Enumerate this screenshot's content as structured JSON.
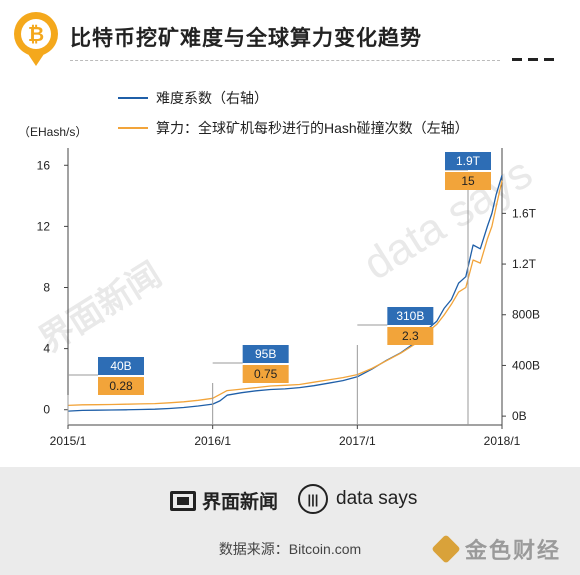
{
  "header": {
    "badge_symbol": "₿",
    "title": "比特币挖矿难度与全球算力变化趋势"
  },
  "legend": [
    {
      "label": "难度系数（右轴）",
      "color": "#1f5fa8"
    },
    {
      "label": "算力：全球矿机每秒进行的Hash碰撞次数（左轴）",
      "color": "#f2a43a"
    }
  ],
  "unit_label": "（EHash/s）",
  "watermarks": {
    "left": "界面新闻",
    "right": "data says"
  },
  "footer": {
    "brand1": "界面新闻",
    "brand2_icon": "|||",
    "brand2": "data says",
    "source": "数据来源：Bitcoin.com",
    "corner": "金色财经"
  },
  "colors": {
    "difficulty": "#1f5fa8",
    "hashrate": "#f2a43a",
    "badge": "#f4a81c"
  },
  "chart_data": {
    "type": "line",
    "x_tick_labels": [
      "2015/1",
      "2016/1",
      "2017/1",
      "2018/1"
    ],
    "x_range": [
      2015.0,
      2018.0
    ],
    "left_axis": {
      "ticks": [
        "0",
        "4",
        "8",
        "12",
        "16"
      ],
      "range": [
        -1,
        17
      ]
    },
    "right_axis": {
      "ticks": [
        "0B",
        "400B",
        "800B",
        "1.2T",
        "1.6T"
      ],
      "range": [
        -0.07,
        2.1
      ]
    },
    "series": [
      {
        "name": "难度系数（右轴）",
        "axis": "right",
        "unit": "T",
        "x": [
          2015.0,
          2015.1,
          2015.2,
          2015.3,
          2015.4,
          2015.5,
          2015.6,
          2015.7,
          2015.8,
          2015.9,
          2016.0,
          2016.05,
          2016.1,
          2016.2,
          2016.3,
          2016.4,
          2016.5,
          2016.6,
          2016.7,
          2016.8,
          2016.9,
          2017.0,
          2017.1,
          2017.2,
          2017.3,
          2017.4,
          2017.5,
          2017.55,
          2017.6,
          2017.65,
          2017.7,
          2017.75,
          2017.8,
          2017.85,
          2017.9,
          2017.93,
          2017.96,
          2018.0
        ],
        "values": [
          0.04,
          0.045,
          0.047,
          0.048,
          0.05,
          0.052,
          0.055,
          0.06,
          0.068,
          0.08,
          0.095,
          0.12,
          0.165,
          0.185,
          0.2,
          0.21,
          0.215,
          0.225,
          0.24,
          0.26,
          0.28,
          0.31,
          0.37,
          0.44,
          0.5,
          0.58,
          0.7,
          0.75,
          0.85,
          0.92,
          1.05,
          1.1,
          1.35,
          1.32,
          1.5,
          1.6,
          1.75,
          1.9
        ]
      },
      {
        "name": "算力：全球矿机每秒进行的Hash碰撞次数（左轴）",
        "axis": "left",
        "unit": "EHash/s",
        "x": [
          2015.0,
          2015.1,
          2015.2,
          2015.3,
          2015.4,
          2015.5,
          2015.6,
          2015.7,
          2015.8,
          2015.9,
          2016.0,
          2016.05,
          2016.1,
          2016.2,
          2016.3,
          2016.4,
          2016.5,
          2016.6,
          2016.7,
          2016.8,
          2016.9,
          2017.0,
          2017.1,
          2017.2,
          2017.3,
          2017.4,
          2017.5,
          2017.55,
          2017.6,
          2017.65,
          2017.7,
          2017.75,
          2017.8,
          2017.85,
          2017.9,
          2017.93,
          2017.96,
          2018.0
        ],
        "values": [
          0.28,
          0.32,
          0.33,
          0.34,
          0.36,
          0.38,
          0.4,
          0.45,
          0.52,
          0.62,
          0.75,
          1.0,
          1.25,
          1.35,
          1.45,
          1.55,
          1.6,
          1.65,
          1.8,
          1.95,
          2.1,
          2.3,
          2.7,
          3.2,
          3.7,
          4.3,
          5.2,
          5.6,
          6.2,
          6.9,
          7.7,
          8.0,
          9.8,
          9.6,
          11.2,
          12.0,
          13.3,
          15.0
        ]
      }
    ],
    "annotations": [
      {
        "x": 2015.0,
        "difficulty": "40B",
        "hashrate": "0.28"
      },
      {
        "x": 2016.0,
        "difficulty": "95B",
        "hashrate": "0.75"
      },
      {
        "x": 2017.0,
        "difficulty": "310B",
        "hashrate": "2.3"
      },
      {
        "x": 2018.0,
        "difficulty": "1.9T",
        "hashrate": "15"
      }
    ]
  }
}
